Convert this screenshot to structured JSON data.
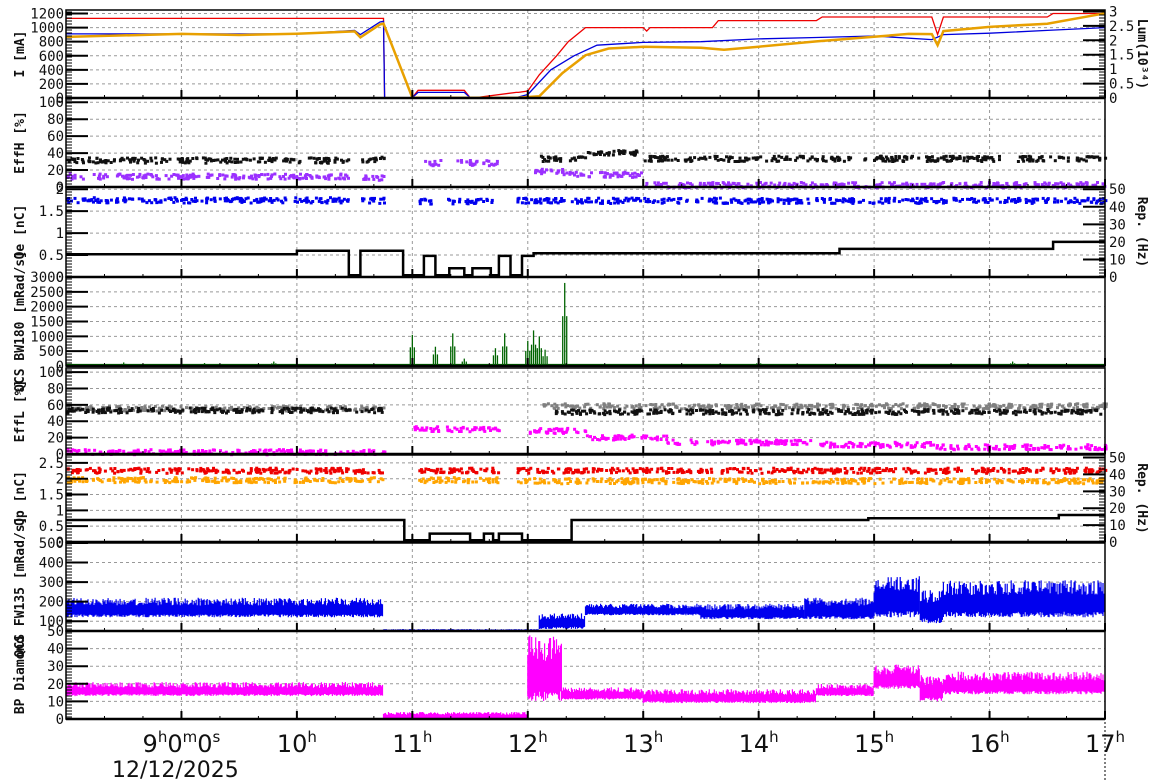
{
  "chart_data": {
    "type": "line",
    "title": "",
    "xlabel": "",
    "date_label": "12/12/2025",
    "x_range_hours": [
      8.0,
      17.0
    ],
    "x_ticks": [
      {
        "h": 9,
        "label": "9",
        "sup1": "h",
        "mid1": "0",
        "sup2": "m",
        "mid2": "0",
        "sup3": "s"
      },
      {
        "h": 10,
        "label": "10",
        "sup1": "h"
      },
      {
        "h": 11,
        "label": "11",
        "sup1": "h"
      },
      {
        "h": 12,
        "label": "12",
        "sup1": "h"
      },
      {
        "h": 13,
        "label": "13",
        "sup1": "h"
      },
      {
        "h": 14,
        "label": "14",
        "sup1": "h"
      },
      {
        "h": 15,
        "label": "15",
        "sup1": "h"
      },
      {
        "h": 16,
        "label": "16",
        "sup1": "h"
      },
      {
        "h": 17,
        "label": "17",
        "sup1": "h"
      }
    ],
    "grid": true,
    "panels": [
      {
        "id": "current",
        "ylabel": "I [mA]",
        "ylim": [
          0,
          1250
        ],
        "yticks": [
          0,
          200,
          400,
          600,
          800,
          1000,
          1200
        ],
        "y2label": "Lum(10^34)",
        "y2lim": [
          0,
          3.05
        ],
        "y2ticks": [
          "0",
          "0.5",
          "1",
          "1.5",
          "2",
          "2.5",
          "3"
        ],
        "series": [
          {
            "name": "I positron (HER/red)",
            "color": "#ee0000",
            "style": "line",
            "x": [
              8.0,
              10.75,
              10.76,
              11.0,
              11.05,
              11.45,
              11.5,
              11.55,
              11.9,
              11.92,
              12.0,
              12.1,
              12.25,
              12.35,
              12.5,
              12.6,
              13.0,
              13.03,
              13.06,
              13.6,
              13.65,
              14.5,
              14.55,
              15.0,
              15.5,
              15.55,
              15.6,
              16.0,
              16.5,
              16.55,
              17.0
            ],
            "y": [
              1130,
              1130,
              5,
              5,
              110,
              110,
              5,
              5,
              80,
              80,
              100,
              330,
              600,
              800,
              1000,
              1000,
              1000,
              950,
              1000,
              1000,
              1100,
              1100,
              1150,
              1150,
              1150,
              900,
              1150,
              1150,
              1150,
              1200,
              1200
            ]
          },
          {
            "name": "I electron (LER/blue)",
            "color": "#0000dd",
            "style": "line",
            "x": [
              8.0,
              10.0,
              10.5,
              10.55,
              10.72,
              10.75,
              10.76,
              11.0,
              11.05,
              11.45,
              11.5,
              11.9,
              12.0,
              12.2,
              12.4,
              12.6,
              13.0,
              13.5,
              14.0,
              14.5,
              15.0,
              15.5,
              15.6,
              16.0,
              16.5,
              17.0
            ],
            "y": [
              910,
              910,
              960,
              900,
              1080,
              1090,
              5,
              5,
              80,
              80,
              5,
              5,
              50,
              400,
              600,
              750,
              790,
              800,
              840,
              860,
              880,
              830,
              900,
              920,
              960,
              1000
            ]
          },
          {
            "name": "Luminosity (orange)",
            "color": "#e8a000",
            "style": "thick",
            "x": [
              8.0,
              9.0,
              9.5,
              10.0,
              10.5,
              10.55,
              10.72,
              10.75,
              11.0,
              11.9,
              12.1,
              12.3,
              12.5,
              12.7,
              13.0,
              13.5,
              13.7,
              14.0,
              14.5,
              15.0,
              15.3,
              15.5,
              15.55,
              15.6,
              16.0,
              16.5,
              17.0
            ],
            "y": [
              880,
              900,
              900,
              920,
              940,
              860,
              1050,
              1050,
              0,
              0,
              20,
              350,
              600,
              710,
              730,
              710,
              680,
              740,
              800,
              870,
              900,
              900,
              760,
              950,
              1000,
              1050,
              1200
            ]
          }
        ]
      },
      {
        "id": "eff_h",
        "ylabel": "Eff_H [%]",
        "ylim": [
          0,
          105
        ],
        "yticks": [
          0,
          20,
          40,
          60,
          80,
          100
        ],
        "series": [
          {
            "name": "Eff_H black",
            "color": "#111111",
            "style": "scatter",
            "band": [
              [
                8.0,
                10.45,
                33
              ],
              [
                10.55,
                10.75,
                34
              ],
              [
                12.1,
                12.5,
                35
              ],
              [
                12.5,
                13.0,
                42
              ],
              [
                13.0,
                17.0,
                35
              ]
            ]
          },
          {
            "name": "Eff_H purple",
            "color": "#9b30ff",
            "style": "scatter",
            "band": [
              [
                8.0,
                10.45,
                14
              ],
              [
                10.55,
                10.75,
                12
              ],
              [
                11.1,
                11.25,
                30
              ],
              [
                11.35,
                11.55,
                30
              ],
              [
                11.6,
                11.75,
                30
              ],
              [
                12.0,
                12.3,
                20
              ],
              [
                12.3,
                13.0,
                16
              ],
              [
                13.0,
                17.0,
                4
              ]
            ]
          }
        ]
      },
      {
        "id": "qe",
        "ylabel": "Q_e [nC]",
        "ylim": [
          0,
          2.05
        ],
        "yticks": [
          "0",
          "0.5",
          "1",
          "1.5",
          "2"
        ],
        "y2label": "Rep. (Hz)",
        "y2lim": [
          0,
          51.25
        ],
        "y2ticks": [
          "0",
          "10",
          "20",
          "30",
          "40",
          "50"
        ],
        "series": [
          {
            "name": "Q_e charge (blue)",
            "color": "#0000ee",
            "style": "scatter",
            "band": [
              [
                8.0,
                10.45,
                1.78
              ],
              [
                10.55,
                10.75,
                1.77
              ],
              [
                11.05,
                11.2,
                1.75
              ],
              [
                11.3,
                11.4,
                1.75
              ],
              [
                11.45,
                11.72,
                1.75
              ],
              [
                11.9,
                17.0,
                1.77
              ]
            ]
          },
          {
            "name": "Rep. rate (black)",
            "color": "#000000",
            "style": "step",
            "x": [
              8.0,
              10.0,
              10.0,
              10.45,
              10.45,
              10.55,
              10.55,
              10.92,
              10.92,
              11.1,
              11.1,
              11.2,
              11.2,
              11.32,
              11.32,
              11.45,
              11.45,
              11.52,
              11.52,
              11.68,
              11.68,
              11.75,
              11.75,
              11.85,
              11.85,
              11.95,
              11.95,
              12.05,
              12.05,
              14.7,
              14.7,
              16.55,
              16.55,
              17.0
            ],
            "y": [
              13,
              13,
              15,
              15,
              1,
              1,
              15,
              15,
              1,
              1,
              12,
              12,
              1,
              1,
              5,
              5,
              1,
              1,
              5,
              5,
              1,
              1,
              12,
              12,
              1,
              1,
              12,
              12,
              13.5,
              13.5,
              16,
              16,
              20,
              20
            ]
          }
        ]
      },
      {
        "id": "qcs_bw180",
        "ylabel": "QCS BW180 [mRad/s]",
        "ylim": [
          0,
          3000
        ],
        "yticks": [
          0,
          500,
          1000,
          1500,
          2000,
          2500,
          3000
        ],
        "series": [
          {
            "name": "QCS BW180 dose rate",
            "color": "#006400",
            "style": "spikes",
            "baseline": 20,
            "spikes": [
              [
                8.5,
                120
              ],
              [
                9.2,
                100
              ],
              [
                9.8,
                150
              ],
              [
                11.0,
                1050
              ],
              [
                11.2,
                650
              ],
              [
                11.35,
                1100
              ],
              [
                11.45,
                250
              ],
              [
                11.72,
                600
              ],
              [
                11.8,
                1100
              ],
              [
                12.0,
                850
              ],
              [
                12.05,
                1200
              ],
              [
                12.1,
                1000
              ],
              [
                12.15,
                550
              ],
              [
                12.32,
                2800
              ],
              [
                14.0,
                150
              ],
              [
                15.0,
                100
              ],
              [
                16.2,
                150
              ]
            ]
          }
        ]
      },
      {
        "id": "eff_l",
        "ylabel": "Eff_L [%]",
        "ylim": [
          0,
          105
        ],
        "yticks": [
          0,
          20,
          40,
          60,
          80,
          100
        ],
        "series": [
          {
            "name": "Eff_L grey",
            "color": "#808080",
            "style": "scatter",
            "band": [
              [
                8.0,
                10.75,
                57
              ],
              [
                12.1,
                14.5,
                60
              ],
              [
                14.5,
                17.0,
                60
              ]
            ]
          },
          {
            "name": "Eff_L black",
            "color": "#111111",
            "style": "scatter",
            "band": [
              [
                8.0,
                10.75,
                55
              ],
              [
                12.2,
                17.0,
                53
              ]
            ]
          },
          {
            "name": "Eff_L magenta",
            "color": "#ff00ff",
            "style": "scatter",
            "band": [
              [
                8.0,
                10.75,
                4
              ],
              [
                11.0,
                11.75,
                32
              ],
              [
                12.0,
                12.5,
                30
              ],
              [
                12.5,
                13.2,
                22
              ],
              [
                13.2,
                14.5,
                16
              ],
              [
                14.5,
                15.5,
                13
              ],
              [
                15.5,
                17.0,
                10
              ]
            ]
          }
        ]
      },
      {
        "id": "qp",
        "ylabel": "Q_p [nC]",
        "ylim": [
          0,
          2.75
        ],
        "yticks": [
          "0",
          "0.5",
          "1",
          "1.5",
          "2",
          "2.5"
        ],
        "y2label": "Rep. (Hz)",
        "y2lim": [
          0,
          51.5
        ],
        "y2ticks": [
          "0",
          "10",
          "20",
          "30",
          "40",
          "50"
        ],
        "series": [
          {
            "name": "Q_p red",
            "color": "#ee0000",
            "style": "scatter",
            "band": [
              [
                8.0,
                10.75,
                2.3
              ],
              [
                11.05,
                11.75,
                2.3
              ],
              [
                11.9,
                17.0,
                2.3
              ]
            ]
          },
          {
            "name": "Q_p orange",
            "color": "#ffa500",
            "style": "scatter",
            "band": [
              [
                8.0,
                10.75,
                2.0
              ],
              [
                11.05,
                11.75,
                2.0
              ],
              [
                11.9,
                17.0,
                1.97
              ]
            ]
          },
          {
            "name": "Rep. rate (black)",
            "color": "#000000",
            "style": "step",
            "x": [
              8.0,
              10.93,
              10.93,
              11.15,
              11.15,
              11.5,
              11.5,
              11.62,
              11.62,
              11.7,
              11.7,
              11.75,
              11.75,
              11.95,
              11.95,
              12.38,
              12.38,
              14.95,
              14.95,
              16.6,
              16.6,
              17.0
            ],
            "y": [
              13,
              13,
              1,
              1,
              5,
              5,
              1,
              1,
              5,
              5,
              1,
              1,
              5,
              5,
              1,
              1,
              13,
              13,
              14,
              14,
              16,
              16
            ]
          }
        ]
      },
      {
        "id": "qcs_fw135",
        "ylabel": "QCS FW135 [mRad/s]",
        "ylim": [
          50,
          500
        ],
        "yticks": [
          50,
          100,
          200,
          300,
          400,
          500
        ],
        "series": [
          {
            "name": "QCS FW135 dose rate",
            "color": "#0000ee",
            "style": "band-noise",
            "band": [
              [
                8.0,
                10.75,
                120,
                220
              ],
              [
                10.75,
                12.1,
                50,
                60
              ],
              [
                12.1,
                12.5,
                60,
                140
              ],
              [
                12.5,
                13.5,
                130,
                190
              ],
              [
                13.5,
                14.4,
                110,
                190
              ],
              [
                14.4,
                15.0,
                110,
                220
              ],
              [
                15.0,
                15.4,
                120,
                330
              ],
              [
                15.4,
                15.6,
                90,
                260
              ],
              [
                15.6,
                17.0,
                120,
                310
              ]
            ]
          }
        ]
      },
      {
        "id": "bp_diamond",
        "ylabel": "BP Diamond",
        "ylim": [
          0,
          50
        ],
        "yticks": [
          0,
          10,
          20,
          30,
          40
        ],
        "series": [
          {
            "name": "BP Diamond",
            "color": "#ff00ff",
            "style": "band-noise",
            "band": [
              [
                8.0,
                10.75,
                13,
                21
              ],
              [
                10.75,
                12.0,
                0,
                4
              ],
              [
                12.0,
                12.3,
                10,
                48
              ],
              [
                12.3,
                13.0,
                11,
                18
              ],
              [
                13.0,
                14.5,
                9,
                17
              ],
              [
                14.5,
                15.0,
                13,
                20
              ],
              [
                15.0,
                15.4,
                17,
                31
              ],
              [
                15.4,
                15.6,
                10,
                25
              ],
              [
                15.6,
                17.0,
                14,
                27
              ]
            ]
          }
        ]
      }
    ]
  }
}
